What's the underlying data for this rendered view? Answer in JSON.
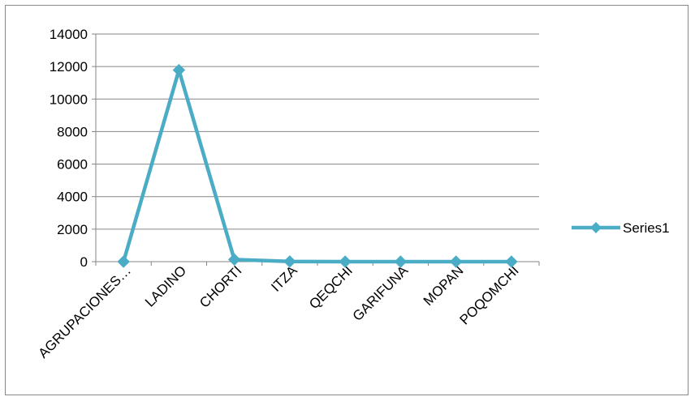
{
  "chart_data": {
    "type": "line",
    "title": "",
    "xlabel": "",
    "ylabel": "",
    "categories": [
      "AGRUPACIONES…",
      "LADINO",
      "CHORTI",
      "ITZA",
      "QEQCHI",
      "GARIFUNA",
      "MOPAN",
      "POQOMCHI"
    ],
    "series": [
      {
        "name": "Series1",
        "values": [
          0,
          11780,
          130,
          10,
          0,
          0,
          0,
          0
        ],
        "color": "#4BACC6"
      }
    ],
    "ylim": [
      0,
      14000
    ],
    "yticks": [
      0,
      2000,
      4000,
      6000,
      8000,
      10000,
      12000,
      14000
    ],
    "grid": true,
    "legend": "right",
    "marker": "diamond"
  }
}
